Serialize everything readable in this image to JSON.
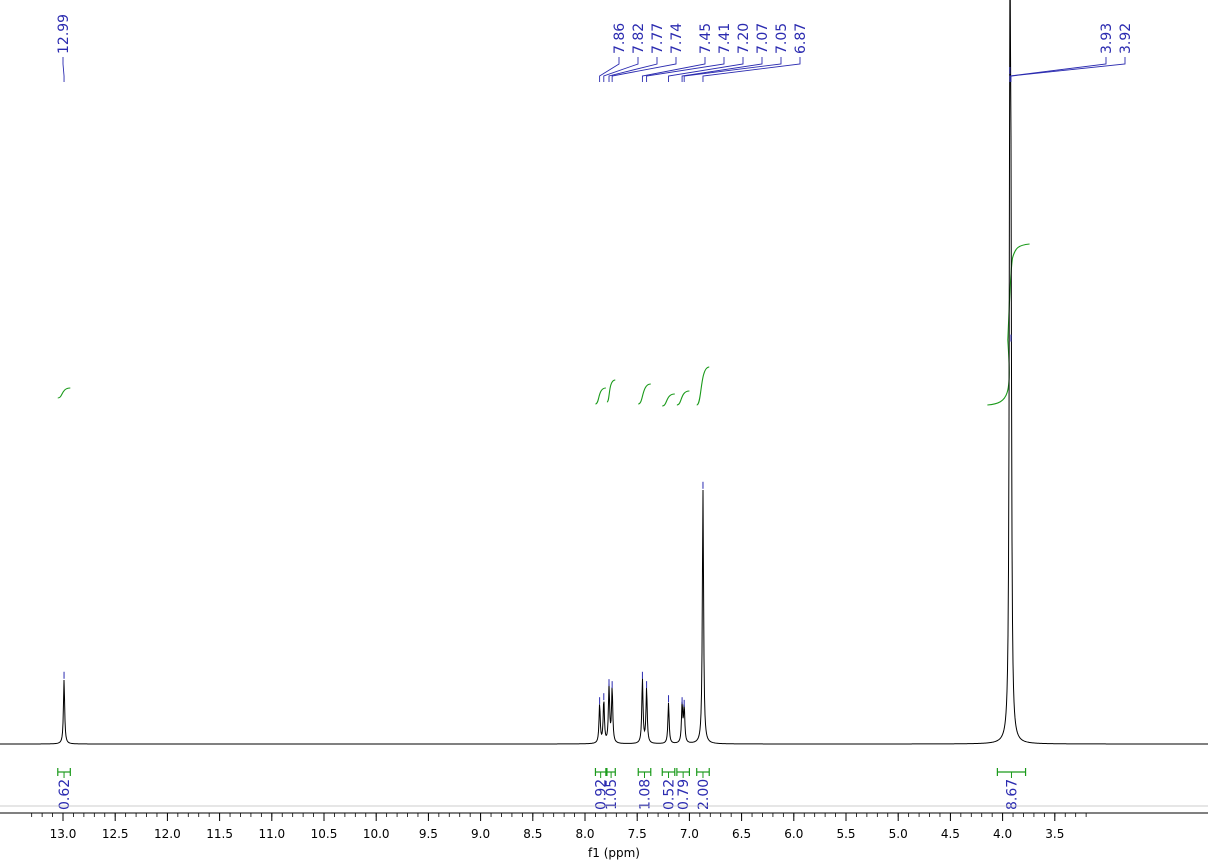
{
  "chart_data": {
    "type": "line",
    "title": "",
    "xlabel": "f1 (ppm)",
    "ylabel": "",
    "x_reversed": true,
    "xlim": [
      13.35,
      3.2
    ],
    "x_ticks": [
      13.0,
      12.5,
      12.0,
      11.5,
      11.0,
      10.5,
      10.0,
      9.5,
      9.0,
      8.5,
      8.0,
      7.5,
      7.0,
      6.5,
      6.0,
      5.5,
      5.0,
      4.5,
      4.0,
      3.5
    ],
    "x_tick_labels": [
      "13.0",
      "12.5",
      "12.0",
      "11.5",
      "11.0",
      "10.5",
      "10.0",
      "9.5",
      "9.0",
      "8.5",
      "8.0",
      "7.5",
      "7.0",
      "6.5",
      "6.0",
      "5.5",
      "5.0",
      "4.5",
      "4.0",
      "3.5"
    ],
    "grid": false,
    "legend": "none",
    "series": [
      {
        "peaks": [
          {
            "ppm": 12.99,
            "height": 0.096
          },
          {
            "ppm": 7.86,
            "height": 0.058
          },
          {
            "ppm": 7.82,
            "height": 0.064
          },
          {
            "ppm": 7.77,
            "height": 0.085
          },
          {
            "ppm": 7.74,
            "height": 0.082
          },
          {
            "ppm": 7.45,
            "height": 0.096
          },
          {
            "ppm": 7.41,
            "height": 0.082
          },
          {
            "ppm": 7.2,
            "height": 0.061
          },
          {
            "ppm": 7.07,
            "height": 0.058
          },
          {
            "ppm": 7.05,
            "height": 0.054
          },
          {
            "ppm": 6.87,
            "height": 0.38
          },
          {
            "ppm": 3.93,
            "height": 1.0
          },
          {
            "ppm": 3.92,
            "height": 0.6
          }
        ]
      }
    ],
    "peak_labels": [
      "12.99",
      "7.86",
      "7.82",
      "7.77",
      "7.74",
      "7.45",
      "7.41",
      "7.20",
      "7.07",
      "7.05",
      "6.87",
      "3.93",
      "3.92"
    ],
    "integrals": [
      {
        "from": 13.05,
        "to": 12.93,
        "value": "0.62"
      },
      {
        "from": 7.9,
        "to": 7.8,
        "value": "0.92"
      },
      {
        "from": 7.79,
        "to": 7.71,
        "value": "1.05"
      },
      {
        "from": 7.49,
        "to": 7.37,
        "value": "1.08"
      },
      {
        "from": 7.26,
        "to": 7.14,
        "value": "0.52"
      },
      {
        "from": 7.12,
        "to": 7.0,
        "value": "0.79"
      },
      {
        "from": 6.93,
        "to": 6.81,
        "value": "2.00"
      },
      {
        "from": 4.05,
        "to": 3.78,
        "value": "8.67"
      }
    ],
    "colors": {
      "spectrum": "#000000",
      "peak_label": "#2b2bb0",
      "integral": "#1a9a1a"
    }
  }
}
